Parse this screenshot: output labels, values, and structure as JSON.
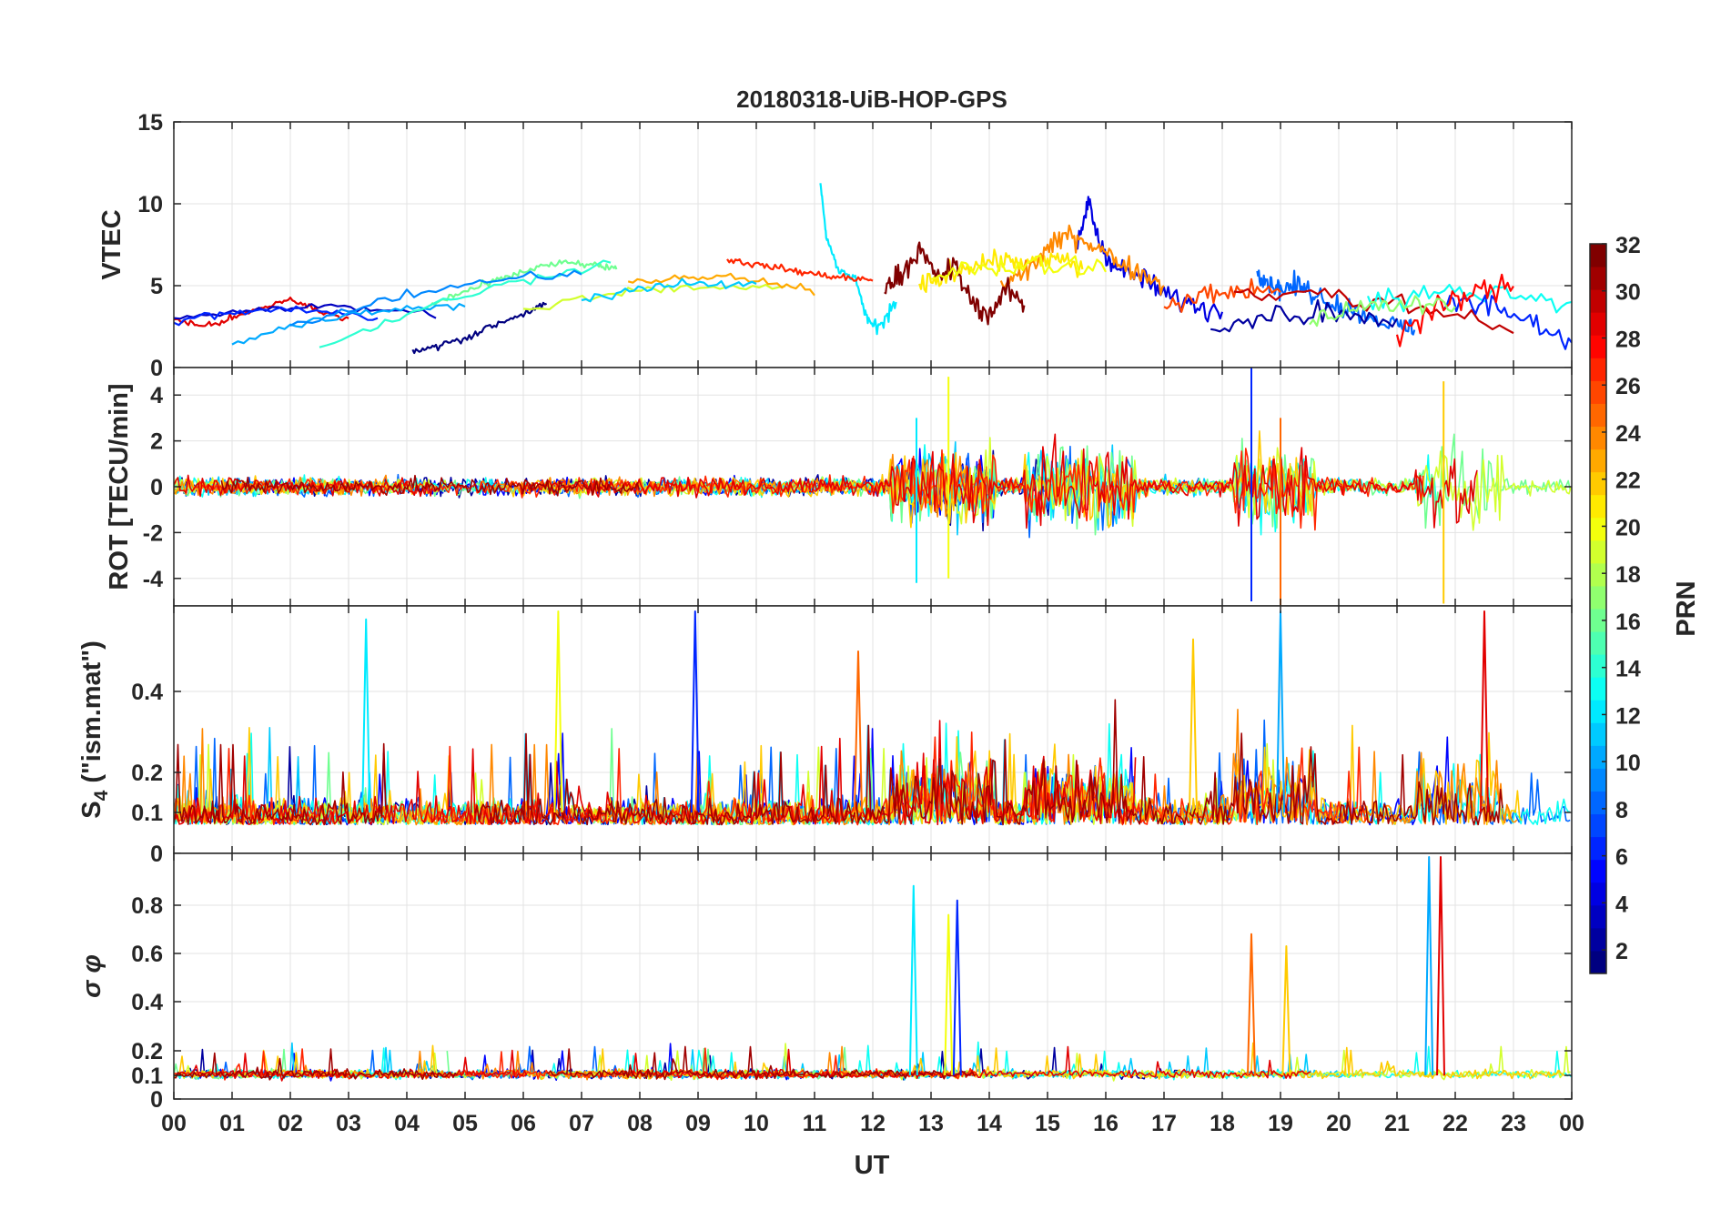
{
  "chart_data": [
    {
      "type": "line",
      "title": "20180318-UiB-HOP-GPS",
      "panel": "VTEC",
      "ylabel": "VTEC",
      "ylim": [
        0,
        15
      ],
      "yticks": [
        0,
        5,
        10,
        15
      ],
      "ytick_labels": [
        "0",
        "5",
        "10",
        "15"
      ],
      "grid": true,
      "series": [
        {
          "prn": 1,
          "x": [
            4.1,
            4.5,
            5.0,
            5.5,
            6.0,
            6.4
          ],
          "y": [
            1.0,
            1.3,
            1.8,
            2.6,
            3.3,
            3.9
          ]
        },
        {
          "prn": 4,
          "x": [
            15.5,
            15.7,
            15.9,
            16.2,
            16.6,
            17.0,
            17.5,
            18.0
          ],
          "y": [
            7.0,
            10.2,
            7.5,
            6.0,
            5.5,
            4.5,
            3.8,
            3.4
          ]
        },
        {
          "prn": 8,
          "x": [
            18.6,
            18.8,
            19.0,
            19.3,
            19.6,
            20.0,
            20.5,
            21.0,
            21.3
          ],
          "y": [
            6.0,
            5.2,
            4.8,
            5.0,
            4.5,
            3.8,
            3.2,
            2.5,
            2.3
          ]
        },
        {
          "prn": 12,
          "x": [
            11.1,
            11.2,
            11.4,
            11.7,
            11.9,
            12.1,
            12.4
          ],
          "y": [
            11.4,
            8.0,
            6.0,
            5.5,
            3.0,
            2.3,
            4.0
          ]
        },
        {
          "prn": 16,
          "x": [
            4.3,
            4.8,
            5.3,
            5.8,
            6.3,
            6.8,
            7.3,
            7.6
          ],
          "y": [
            3.6,
            4.4,
            5.0,
            5.6,
            6.2,
            6.4,
            6.2,
            6.0
          ]
        },
        {
          "prn": 21,
          "x": [
            12.8,
            13.2,
            13.6,
            14.0,
            14.4,
            14.8,
            15.2,
            15.6
          ],
          "y": [
            4.9,
            5.5,
            6.2,
            6.5,
            6.5,
            6.3,
            6.7,
            6.0
          ]
        },
        {
          "prn": 24,
          "x": [
            14.2,
            14.6,
            15.0,
            15.4,
            15.8,
            16.2,
            16.6,
            17.0
          ],
          "y": [
            5.0,
            5.8,
            7.2,
            8.2,
            7.5,
            6.5,
            5.8,
            5.0
          ]
        },
        {
          "prn": 27,
          "x": [
            9.5,
            10.0,
            10.5,
            11.0,
            11.5,
            12.0
          ],
          "y": [
            6.6,
            6.3,
            6.0,
            5.7,
            5.5,
            5.3
          ]
        },
        {
          "prn": 29,
          "x": [
            0.0,
            0.5,
            1.0,
            1.5,
            2.0,
            2.5,
            3.0
          ],
          "y": [
            3.0,
            2.5,
            3.0,
            3.6,
            4.2,
            3.4,
            3.0
          ]
        },
        {
          "prn": 32,
          "x": [
            12.2,
            12.5,
            12.8,
            13.1,
            13.4,
            13.7,
            14.0,
            14.3,
            14.6
          ],
          "y": [
            4.8,
            5.8,
            7.2,
            5.5,
            6.2,
            4.0,
            3.2,
            4.8,
            3.8
          ]
        }
      ]
    },
    {
      "type": "line",
      "panel": "ROT",
      "ylabel": "ROT [TECU/min]",
      "ylim": [
        -5.2,
        5.2
      ],
      "yticks": [
        -4,
        -2,
        0,
        2,
        4
      ],
      "ytick_labels": [
        "-4",
        "-2",
        "0",
        "2",
        "4"
      ],
      "grid": true,
      "peaks": [
        {
          "x": 12.75,
          "y_max": 3.0,
          "y_min": -4.2
        },
        {
          "x": 13.3,
          "y_max": 4.8,
          "y_min": -4.0
        },
        {
          "x": 18.5,
          "y_max": 5.2,
          "y_min": -5.0
        },
        {
          "x": 19.0,
          "y_max": 3.0,
          "y_min": -5.2
        },
        {
          "x": 21.8,
          "y_max": 4.6,
          "y_min": -5.1
        }
      ]
    },
    {
      "type": "line",
      "panel": "S4",
      "ylabel": "S_4 (\"ism.mat\")",
      "ylim": [
        0,
        0.6
      ],
      "yticks": [
        0,
        0.1,
        0.2,
        0.4
      ],
      "ytick_labels": [
        "0",
        "0.1",
        "0.2",
        "0.4"
      ],
      "grid": true,
      "peaks": [
        {
          "x": 3.3,
          "y": 0.58
        },
        {
          "x": 6.6,
          "y": 0.6
        },
        {
          "x": 8.95,
          "y": 0.6
        },
        {
          "x": 11.75,
          "y": 0.5
        },
        {
          "x": 17.5,
          "y": 0.53
        },
        {
          "x": 19.0,
          "y": 0.6
        },
        {
          "x": 22.5,
          "y": 0.6
        }
      ]
    },
    {
      "type": "line",
      "panel": "sigma_phi",
      "ylabel": "σ φ",
      "ylim": [
        0,
        1
      ],
      "yticks": [
        0,
        0.1,
        0.2,
        0.4,
        0.6,
        0.8
      ],
      "ytick_labels": [
        "0",
        "0.1",
        "0.2",
        "0.4",
        "0.6",
        "0.8"
      ],
      "grid": true,
      "peaks": [
        {
          "x": 12.7,
          "y": 0.88
        },
        {
          "x": 13.3,
          "y": 0.76
        },
        {
          "x": 13.45,
          "y": 0.82
        },
        {
          "x": 18.5,
          "y": 0.68
        },
        {
          "x": 19.1,
          "y": 0.63
        },
        {
          "x": 21.55,
          "y": 1.0
        },
        {
          "x": 21.75,
          "y": 1.0
        }
      ]
    }
  ],
  "x_axis": {
    "label": "UT",
    "range": [
      0,
      24
    ],
    "tick_labels": [
      "00",
      "01",
      "02",
      "03",
      "04",
      "05",
      "06",
      "07",
      "08",
      "09",
      "10",
      "11",
      "12",
      "13",
      "14",
      "15",
      "16",
      "17",
      "18",
      "19",
      "20",
      "21",
      "22",
      "23",
      "00"
    ]
  },
  "colorbar": {
    "label": "PRN",
    "range": [
      1,
      32
    ],
    "ticks": [
      2,
      4,
      6,
      8,
      10,
      12,
      14,
      16,
      18,
      20,
      22,
      24,
      26,
      28,
      30,
      32
    ],
    "tick_labels": [
      "2",
      "4",
      "6",
      "8",
      "10",
      "12",
      "14",
      "16",
      "18",
      "20",
      "22",
      "24",
      "26",
      "28",
      "30",
      "32"
    ],
    "colormap": "jet"
  }
}
